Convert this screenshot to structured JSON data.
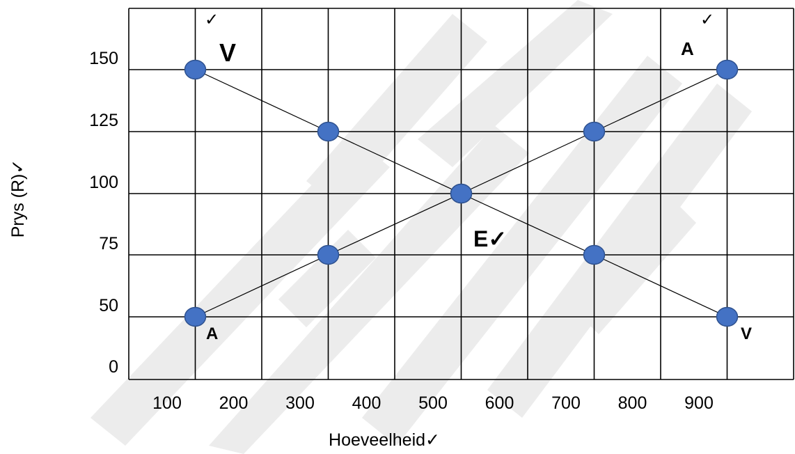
{
  "chart_data": {
    "type": "line",
    "xlabel": "Hoeveelheid✓",
    "ylabel": "Prys (R)✓",
    "x_ticks": [
      "100",
      "200",
      "300",
      "400",
      "500",
      "600",
      "700",
      "800",
      "900"
    ],
    "y_ticks": [
      "0",
      "50",
      "75",
      "100",
      "125",
      "150"
    ],
    "grid": true,
    "series": [
      {
        "name": "V",
        "color": "#000000",
        "marker_color": "#4472C4",
        "points": [
          {
            "x": 150,
            "y": 150
          },
          {
            "x": 350,
            "y": 125
          },
          {
            "x": 550,
            "y": 100
          },
          {
            "x": 750,
            "y": 75
          },
          {
            "x": 950,
            "y": 50
          }
        ]
      },
      {
        "name": "A",
        "color": "#000000",
        "marker_color": "#4472C4",
        "points": [
          {
            "x": 150,
            "y": 50
          },
          {
            "x": 350,
            "y": 75
          },
          {
            "x": 550,
            "y": 100
          },
          {
            "x": 750,
            "y": 125
          },
          {
            "x": 950,
            "y": 150
          }
        ]
      }
    ],
    "labels": {
      "supply_top": "V",
      "supply_bottom": "V",
      "demand_top": "A",
      "demand_bottom": "A",
      "equilibrium": "E✓",
      "check": "✓"
    },
    "watermark_color": "#e5e5e5"
  }
}
